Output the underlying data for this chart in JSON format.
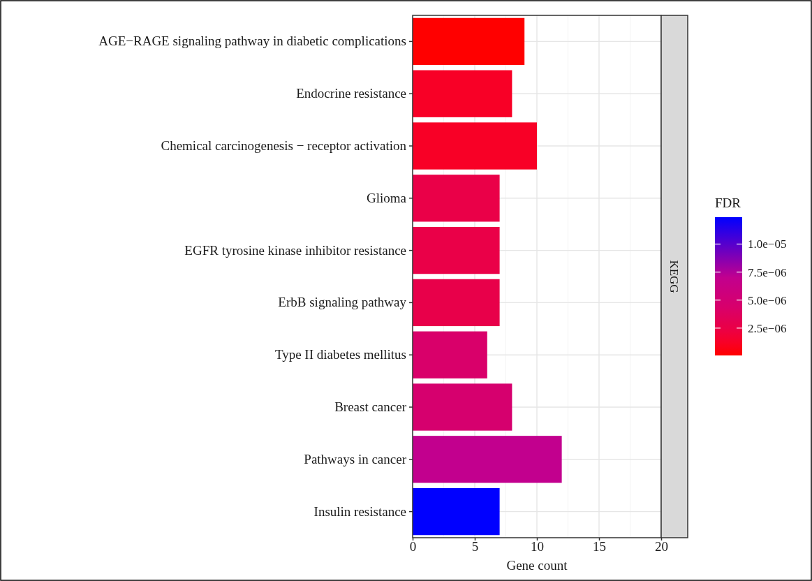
{
  "chart_data": {
    "type": "bar",
    "orientation": "horizontal",
    "categories": [
      "AGE−RAGE signaling pathway in diabetic complications",
      "Endocrine resistance",
      "Chemical carcinogenesis − receptor activation",
      "Glioma",
      "EGFR tyrosine kinase inhibitor resistance",
      "ErbB signaling pathway",
      "Type II diabetes mellitus",
      "Breast cancer",
      "Pathways in cancer",
      "Insulin resistance"
    ],
    "values": [
      9,
      8,
      10,
      7,
      7,
      7,
      6,
      8,
      12,
      7
    ],
    "colors": [
      "#ff0000",
      "#f80026",
      "#f80026",
      "#ea0048",
      "#ea0048",
      "#e8004a",
      "#d9006a",
      "#d6006e",
      "#c2008e",
      "#0000ff"
    ],
    "cvalues": [
      6e-08,
      1.2e-06,
      1.2e-06,
      2.5e-06,
      2.5e-06,
      2.7e-06,
      4.3e-06,
      4.6e-06,
      7e-06,
      1.24e-05
    ],
    "xlabel": "Gene count",
    "xlim": [
      0,
      20
    ],
    "xticks": [
      0,
      5,
      10,
      15,
      20
    ],
    "clabel": "FDR",
    "clim": [
      6e-08,
      1.24e-05
    ],
    "cticks": [
      {
        "value": 2.5e-06,
        "label": "2.5e−06"
      },
      {
        "value": 5e-06,
        "label": "5.0e−06"
      },
      {
        "value": 7.5e-06,
        "label": "7.5e−06"
      },
      {
        "value": 1e-05,
        "label": "1.0e−05"
      }
    ],
    "annotations": [
      "KEGG"
    ],
    "grid": true
  }
}
